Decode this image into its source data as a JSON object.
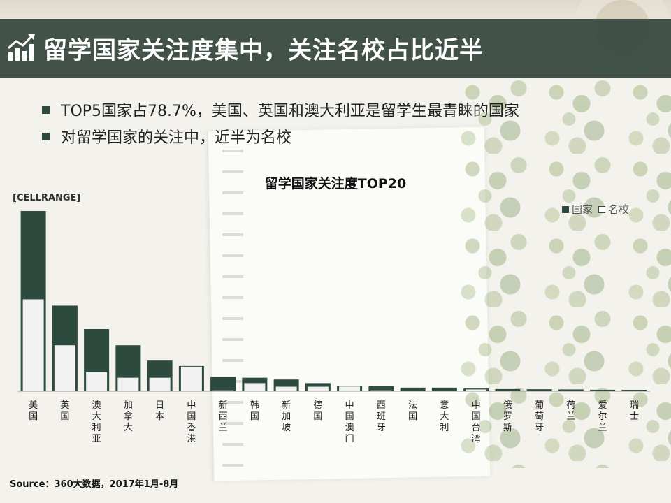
{
  "header": {
    "title": "留学国家关注度集中，关注名校占比近半",
    "icon": "bar-chart-trend-icon"
  },
  "bullets": [
    "TOP5国家占78.7%，美国、英国和澳大利亚是留学生最青睐的国家",
    "对留学国家的关注中，近半为名校"
  ],
  "source": "Source：360大数据，2017年1月-8月",
  "colors": {
    "accent": "#2c4a3e",
    "light_bar": "#f2f2f2",
    "title_bar": "#34463c"
  },
  "chart_data": {
    "type": "bar",
    "title": "留学国家关注度TOP20",
    "annotation": "[CELLRANGE]",
    "legend_position": "top-right",
    "grid": false,
    "categories": [
      "美国",
      "英国",
      "澳大利亚",
      "加拿大",
      "日本",
      "中国香港",
      "新西兰",
      "韩国",
      "新加坡",
      "德国",
      "中国澳门",
      "西班牙",
      "法国",
      "意大利",
      "中国台湾",
      "俄罗斯",
      "葡萄牙",
      "荷兰",
      "爱尔兰",
      "瑞士"
    ],
    "series": [
      {
        "name": "国家",
        "values": [
          100,
          47.5,
          34.5,
          25.5,
          17,
          14,
          8,
          7.5,
          6.5,
          4.5,
          3,
          2.7,
          2,
          2,
          1.5,
          1.2,
          1.1,
          1,
          0.8,
          0.7
        ]
      },
      {
        "name": "名校",
        "values": [
          51,
          25.5,
          10.5,
          7.5,
          7.5,
          14,
          0.5,
          4.5,
          2.5,
          2.5,
          3,
          0.5,
          0.3,
          0.2,
          1,
          0.3,
          0.2,
          0.3,
          0.1,
          0.5
        ]
      }
    ],
    "ylim": [
      0,
      100
    ]
  }
}
